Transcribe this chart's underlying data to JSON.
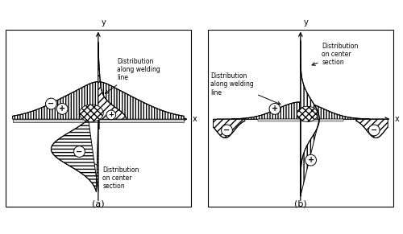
{
  "fig_width": 5.0,
  "fig_height": 2.91,
  "background": "#ffffff",
  "label_a": "(a)",
  "label_b": "(b)",
  "text_a_label1": "Distribution\nalong welding\nline",
  "text_a_label2": "Distribution\non center\nsection",
  "text_b_label1": "Distribution\nalong welding\nline",
  "text_b_label2": "Distribution\non center\nsection"
}
